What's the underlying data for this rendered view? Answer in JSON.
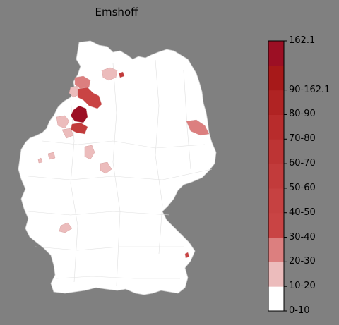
{
  "title": "Emshoff",
  "colorbar": {
    "max_label": "162.1",
    "bins": [
      {
        "label": "0-10",
        "color": "#ffffff"
      },
      {
        "label": "10-20",
        "color": "#ecbcbc"
      },
      {
        "label": "20-30",
        "color": "#dc7f7f"
      },
      {
        "label": "30-40",
        "color": "#c94444"
      },
      {
        "label": "40-50",
        "color": "#c64141"
      },
      {
        "label": "50-60",
        "color": "#c23b3b"
      },
      {
        "label": "60-70",
        "color": "#bd3434"
      },
      {
        "label": "70-80",
        "color": "#b82c2c"
      },
      {
        "label": "80-90",
        "color": "#b02323"
      },
      {
        "label": "90-162.1",
        "color": "#a71919"
      },
      {
        "label": "",
        "color": "#9c0f24"
      }
    ]
  },
  "colors": {
    "background": "#808080",
    "land": "#ffffff",
    "border": "#d6d6d6"
  }
}
